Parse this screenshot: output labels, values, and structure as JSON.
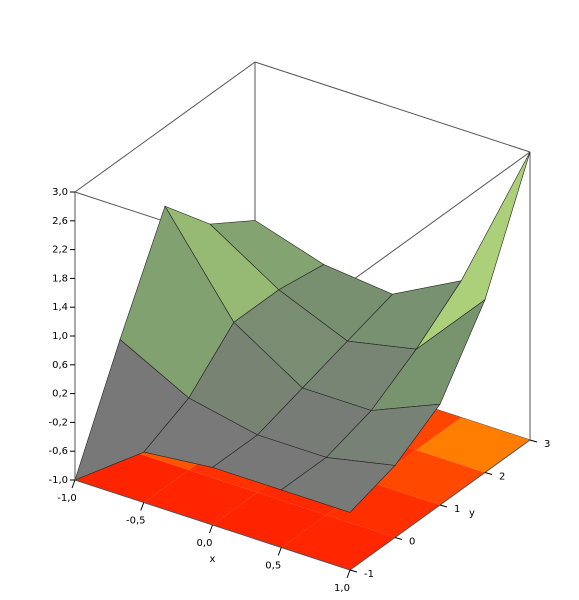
{
  "chart_data": {
    "type": "surface3d",
    "x": [
      -1,
      -0.5,
      0,
      0.5,
      1
    ],
    "y": [
      -1,
      0,
      1,
      2,
      3
    ],
    "z": [
      [
        -1,
        -0.3,
        -0.2,
        -0.2,
        -0.2
      ],
      [
        0.5,
        0,
        -0.2,
        -0.2,
        0
      ],
      [
        1.9,
        0.6,
        0,
        0,
        0.4
      ],
      [
        1.2,
        0.6,
        0.2,
        0.4,
        1.4
      ],
      [
        0.8,
        0.5,
        0.4,
        0.9,
        3.0
      ]
    ],
    "xlim": [
      -1,
      1
    ],
    "ylim": [
      -1,
      3
    ],
    "zlim": [
      -1,
      3
    ],
    "xticks": [
      {
        "value": -1,
        "label": "-1,0"
      },
      {
        "value": -0.5,
        "label": "-0,5"
      },
      {
        "value": 0,
        "label": "0,0"
      },
      {
        "value": 0.5,
        "label": "0,5"
      },
      {
        "value": 1,
        "label": "1,0"
      }
    ],
    "yticks": [
      -1,
      0,
      1,
      2,
      3
    ],
    "zticks": [
      {
        "value": -1,
        "label": "-1,0"
      },
      {
        "value": -0.6,
        "label": "-0,6"
      },
      {
        "value": -0.2,
        "label": "-0,2"
      },
      {
        "value": 0.2,
        "label": "0,2"
      },
      {
        "value": 0.6,
        "label": "0,6"
      },
      {
        "value": 1,
        "label": "1,0"
      },
      {
        "value": 1.4,
        "label": "1,4"
      },
      {
        "value": 1.8,
        "label": "1,8"
      },
      {
        "value": 2.2,
        "label": "2,2"
      },
      {
        "value": 2.6,
        "label": "2,6"
      },
      {
        "value": 3,
        "label": "3,0"
      }
    ],
    "xlabel": "x",
    "ylabel": "y",
    "floor_contour": true
  }
}
